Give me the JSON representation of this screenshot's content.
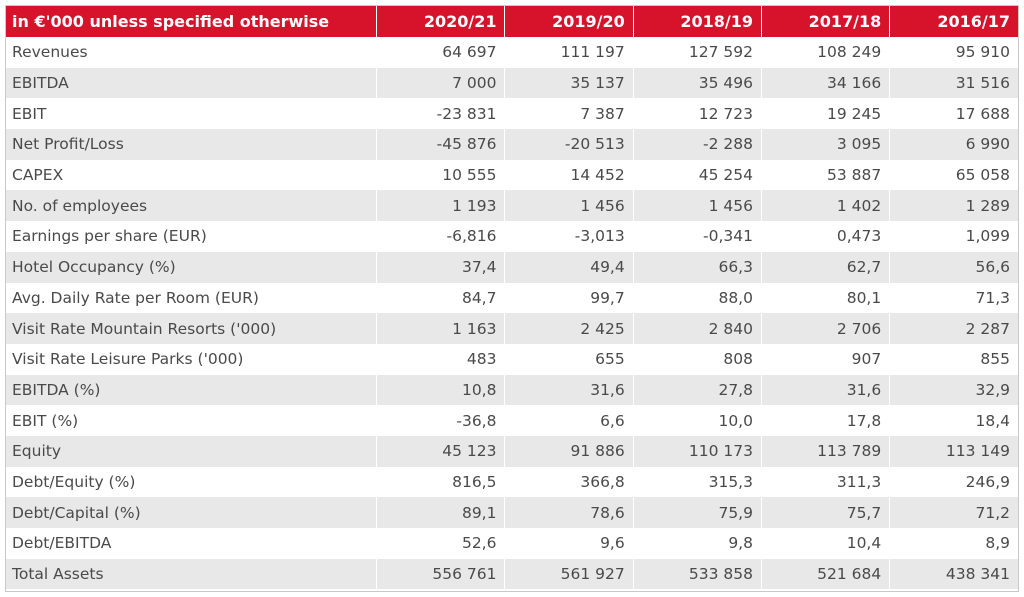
{
  "table": {
    "header": {
      "label": "in €'000 unless specified otherwise",
      "years": [
        "2020/21",
        "2019/20",
        "2018/19",
        "2017/18",
        "2016/17"
      ]
    },
    "rows": [
      {
        "label": "Revenues",
        "values": [
          "64 697",
          "111 197",
          "127 592",
          "108 249",
          "95 910"
        ]
      },
      {
        "label": "EBITDA",
        "values": [
          "7 000",
          "35 137",
          "35 496",
          "34 166",
          "31 516"
        ]
      },
      {
        "label": "EBIT",
        "values": [
          "-23 831",
          "7 387",
          "12 723",
          "19 245",
          "17 688"
        ]
      },
      {
        "label": "Net Profit/Loss",
        "values": [
          "-45 876",
          "-20 513",
          "-2 288",
          "3 095",
          "6 990"
        ]
      },
      {
        "label": "CAPEX",
        "values": [
          "10 555",
          "14 452",
          "45 254",
          "53 887",
          "65 058"
        ]
      },
      {
        "label": "No. of employees",
        "values": [
          "1 193",
          "1 456",
          "1 456",
          "1 402",
          "1 289"
        ]
      },
      {
        "label": "Earnings per share (EUR)",
        "values": [
          "-6,816",
          "-3,013",
          "-0,341",
          "0,473",
          "1,099"
        ]
      },
      {
        "label": "Hotel Occupancy (%)",
        "values": [
          "37,4",
          "49,4",
          "66,3",
          "62,7",
          "56,6"
        ]
      },
      {
        "label": "Avg. Daily Rate per Room (EUR)",
        "values": [
          "84,7",
          "99,7",
          "88,0",
          "80,1",
          "71,3"
        ]
      },
      {
        "label": "Visit Rate Mountain Resorts ('000)",
        "values": [
          "1 163",
          "2 425",
          "2 840",
          "2 706",
          "2 287"
        ]
      },
      {
        "label": "Visit Rate Leisure Parks ('000)",
        "values": [
          "483",
          "655",
          "808",
          "907",
          "855"
        ]
      },
      {
        "label": "EBITDA (%)",
        "values": [
          "10,8",
          "31,6",
          "27,8",
          "31,6",
          "32,9"
        ]
      },
      {
        "label": "EBIT (%)",
        "values": [
          "-36,8",
          "6,6",
          "10,0",
          "17,8",
          "18,4"
        ]
      },
      {
        "label": "Equity",
        "values": [
          "45 123",
          "91 886",
          "110 173",
          "113 789",
          "113 149"
        ]
      },
      {
        "label": "Debt/Equity (%)",
        "values": [
          "816,5",
          "366,8",
          "315,3",
          "311,3",
          "246,9"
        ]
      },
      {
        "label": "Debt/Capital (%)",
        "values": [
          "89,1",
          "78,6",
          "75,9",
          "75,7",
          "71,2"
        ]
      },
      {
        "label": "Debt/EBITDA",
        "values": [
          "52,6",
          "9,6",
          "9,8",
          "10,4",
          "8,9"
        ]
      },
      {
        "label": "Total Assets",
        "values": [
          "556 761",
          "561 927",
          "533 858",
          "521 684",
          "438 341"
        ]
      }
    ]
  },
  "colors": {
    "header_bg": "#d7122b",
    "header_text": "#ffffff",
    "row_alt_bg": "#e8e8e8",
    "body_text": "#4a4a4a"
  }
}
